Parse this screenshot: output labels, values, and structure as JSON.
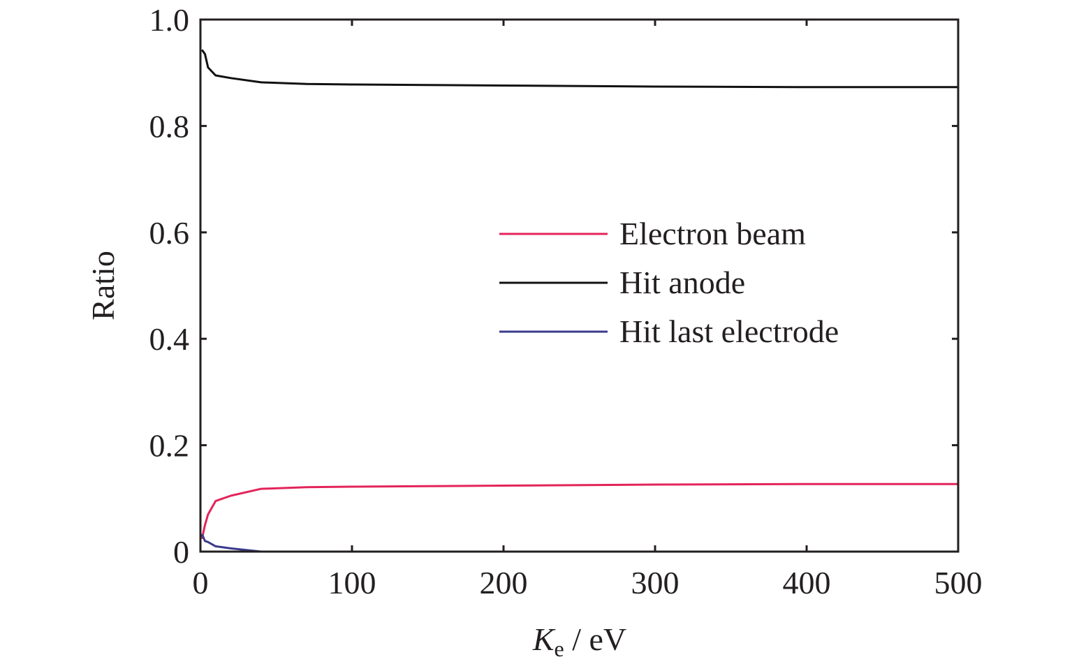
{
  "chart_data": {
    "type": "line",
    "title": "",
    "xlabel": {
      "symbol": "K",
      "subscript": "e",
      "unit_suffix": " / eV"
    },
    "ylabel": "Ratio",
    "xlim": [
      0,
      500
    ],
    "ylim": [
      0,
      1.0
    ],
    "xticks": [
      0,
      100,
      200,
      300,
      400,
      500
    ],
    "xtick_labels": [
      "0",
      "100",
      "200",
      "300",
      "400",
      "500"
    ],
    "yticks": [
      0,
      0.2,
      0.4,
      0.6,
      0.8,
      1.0
    ],
    "ytick_labels": [
      "0",
      "0.2",
      "0.4",
      "0.6",
      "0.8",
      "1.0"
    ],
    "grid": false,
    "legend_position": "right-center",
    "series": [
      {
        "name": "Electron beam",
        "color": "#e3245a",
        "x": [
          1,
          3,
          5,
          10,
          20,
          40,
          70,
          100,
          150,
          200,
          300,
          400,
          500
        ],
        "y": [
          0.024,
          0.05,
          0.07,
          0.095,
          0.105,
          0.118,
          0.121,
          0.122,
          0.123,
          0.124,
          0.126,
          0.127,
          0.127
        ]
      },
      {
        "name": "Hit anode",
        "color": "#111111",
        "x": [
          1,
          3,
          5,
          10,
          20,
          40,
          70,
          100,
          150,
          200,
          300,
          400,
          500
        ],
        "y": [
          0.943,
          0.935,
          0.91,
          0.895,
          0.89,
          0.882,
          0.879,
          0.878,
          0.877,
          0.876,
          0.874,
          0.873,
          0.873
        ]
      },
      {
        "name": "Hit last electrode",
        "color": "#3a3a8c",
        "x": [
          1,
          3,
          5,
          10,
          20,
          40,
          70,
          100,
          200,
          300,
          400,
          500
        ],
        "y": [
          0.033,
          0.02,
          0.018,
          0.01,
          0.006,
          0.0,
          0.0,
          0.0,
          0.0,
          0.0,
          0.0,
          0.0
        ]
      }
    ]
  }
}
